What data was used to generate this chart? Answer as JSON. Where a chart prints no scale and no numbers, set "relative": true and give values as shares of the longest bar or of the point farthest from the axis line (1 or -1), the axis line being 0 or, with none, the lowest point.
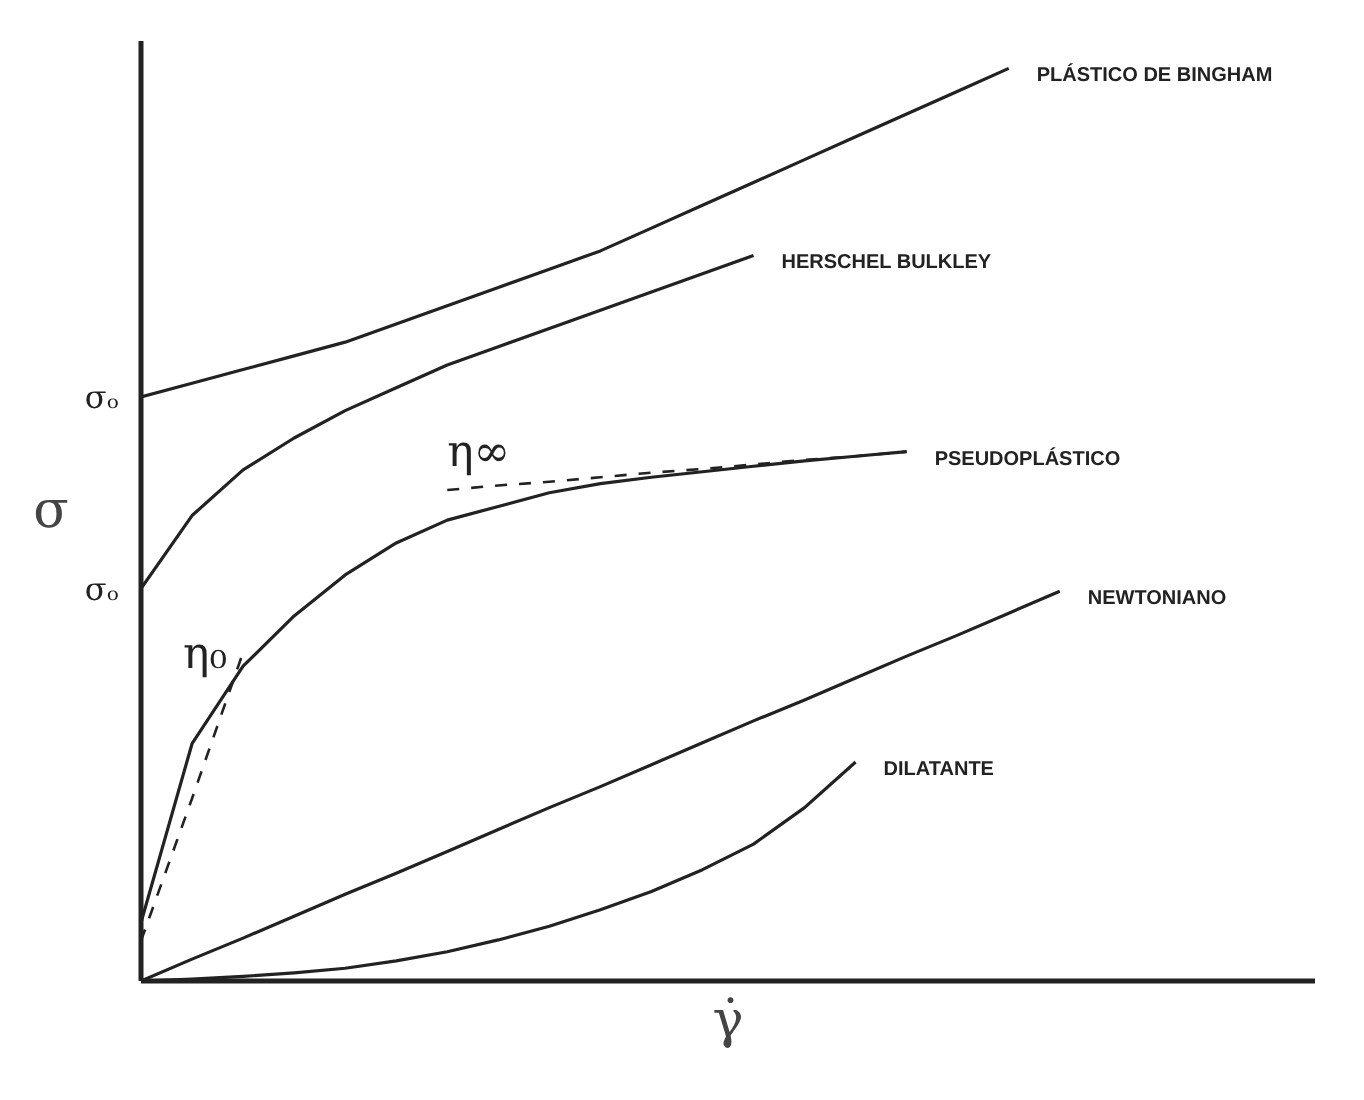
{
  "chart_data": {
    "type": "line",
    "relative": true,
    "xlabel": "γ̇",
    "ylabel": "σ",
    "marker": "none",
    "categories": [
      null,
      null,
      null,
      null,
      null,
      null,
      null,
      null,
      null,
      null,
      null,
      null,
      null,
      null,
      null,
      null,
      null,
      null,
      null,
      null
    ],
    "series": [
      {
        "name": "PLÁSTICO DE BINGHAM",
        "color": "#222222",
        "values": [
          0.64,
          0.655,
          0.67,
          0.685,
          0.7,
          0.72,
          0.74,
          0.76,
          0.78,
          0.8,
          0.825,
          0.85,
          0.875,
          0.9,
          0.925,
          0.95,
          0.975,
          1.0,
          null,
          null
        ]
      },
      {
        "name": "HERSCHEL BULKLEY",
        "color": "#222222",
        "values": [
          0.43,
          0.51,
          0.56,
          0.595,
          0.625,
          0.65,
          0.675,
          0.695,
          0.715,
          0.735,
          0.755,
          0.775,
          0.795,
          null,
          null,
          null,
          null,
          null,
          null,
          null
        ]
      },
      {
        "name": "PSEUDOPLÁSTICO",
        "color": "#222222",
        "values": [
          0.064,
          0.26,
          0.345,
          0.4,
          0.445,
          0.48,
          0.505,
          0.52,
          0.535,
          0.545,
          0.552,
          0.558,
          0.564,
          0.57,
          0.575,
          0.58,
          null,
          null,
          null,
          null
        ]
      },
      {
        "name": "NEWTONIANO",
        "color": "#222222",
        "values": [
          0,
          0.024,
          0.047,
          0.071,
          0.095,
          0.118,
          0.142,
          0.166,
          0.19,
          0.213,
          0.237,
          0.261,
          0.285,
          0.308,
          0.332,
          0.356,
          0.379,
          0.403,
          0.427,
          null
        ]
      },
      {
        "name": "DILATANTE",
        "color": "#222222",
        "values": [
          0,
          0.002,
          0.005,
          0.009,
          0.014,
          0.022,
          0.032,
          0.045,
          0.06,
          0.078,
          0.098,
          0.122,
          0.15,
          0.19,
          0.24,
          null,
          null,
          null,
          null,
          null
        ]
      },
      {
        "name": "η₀",
        "color": "#222222",
        "line_style": "dashed",
        "values": [
          0.044,
          0.2,
          0.36,
          null,
          null,
          null,
          null,
          null,
          null,
          null,
          null,
          null,
          null,
          null,
          null,
          null,
          null,
          null,
          null,
          null
        ]
      },
      {
        "name": "η∞",
        "color": "#222222",
        "line_style": "dashed",
        "values": [
          null,
          null,
          null,
          null,
          null,
          null,
          0.538,
          0.543,
          0.547,
          0.552,
          0.557,
          0.561,
          0.566,
          0.571,
          0.575,
          0.58,
          null,
          null,
          null,
          null
        ]
      }
    ],
    "annotations": [
      "σₒ",
      "σₒ"
    ]
  }
}
